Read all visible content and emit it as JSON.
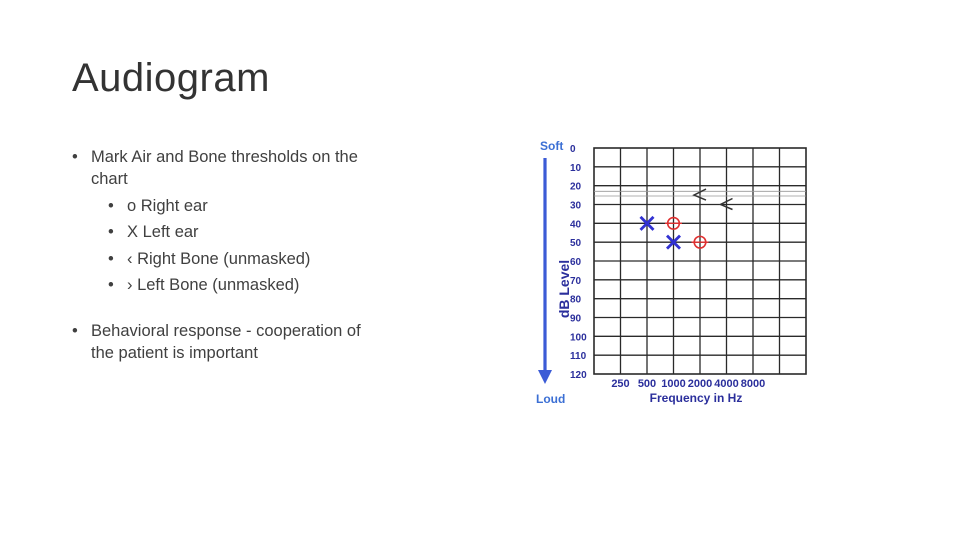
{
  "slide": {
    "title": "Audiogram",
    "bullets": [
      {
        "text": "Mark Air and Bone thresholds on the chart",
        "sub": [
          "o   Right ear",
          "X Left ear",
          "‹ Right Bone (unmasked)",
          "› Left Bone (unmasked)"
        ]
      },
      {
        "text": "Behavioral response - cooperation of the patient is important"
      }
    ]
  },
  "chart_data": {
    "type": "scatter",
    "xlabel": "Frequency in Hz",
    "ylabel": "dB Level",
    "top_label": "Soft",
    "bottom_label": "Loud",
    "x_ticks": [
      "250",
      "500",
      "1000",
      "2000",
      "4000",
      "8000"
    ],
    "y_ticks": [
      "0",
      "10",
      "20",
      "30",
      "40",
      "50",
      "60",
      "70",
      "80",
      "90",
      "100",
      "110",
      "120"
    ],
    "ylim": [
      0,
      120
    ],
    "y_inverted": true,
    "grid": true,
    "colors": {
      "left_ear": "#3232d2",
      "right_ear": "#e03030",
      "bone": "#333333",
      "axis_text": "#2b2f9c",
      "soft_loud": "#3b6fd4",
      "arrow": "#3b5bd6"
    },
    "series": [
      {
        "symbol": "x",
        "points": [
          {
            "x": "500",
            "y": 40
          },
          {
            "x": "1000",
            "y": 50
          }
        ]
      },
      {
        "symbol": "o",
        "points": [
          {
            "x": "1000",
            "y": 40
          },
          {
            "x": "2000",
            "y": 50
          }
        ]
      },
      {
        "symbol": "<",
        "points": [
          {
            "x": "2000",
            "y": 25
          },
          {
            "x": "4000",
            "y": 30
          }
        ]
      }
    ]
  }
}
